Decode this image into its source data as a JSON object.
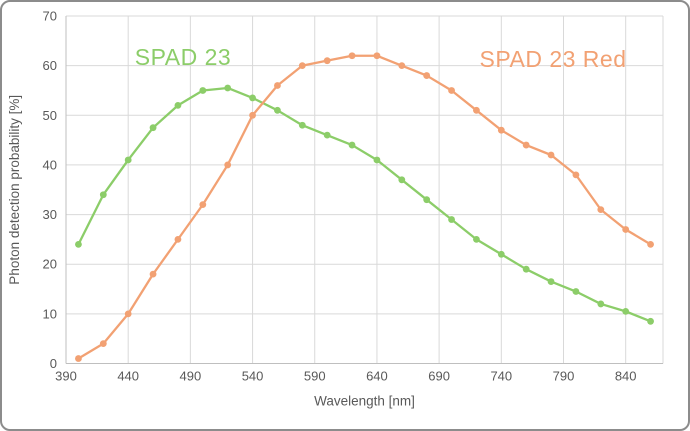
{
  "chart_data": {
    "type": "line",
    "title": "",
    "xlabel": "Wavelength [nm]",
    "ylabel": "Photon detection probability [%]",
    "xlim": [
      390,
      870
    ],
    "ylim": [
      0,
      70
    ],
    "x_ticks": [
      390,
      440,
      490,
      540,
      590,
      640,
      690,
      740,
      790,
      840
    ],
    "y_ticks": [
      0,
      10,
      20,
      30,
      40,
      50,
      60,
      70
    ],
    "grid": true,
    "legend": "inline-labels",
    "x": [
      400,
      420,
      440,
      460,
      480,
      500,
      520,
      540,
      560,
      580,
      600,
      620,
      640,
      660,
      680,
      700,
      720,
      740,
      760,
      780,
      800,
      820,
      840,
      860
    ],
    "series": [
      {
        "name": "SPAD 23",
        "color": "#8ccd69",
        "label_anchor": {
          "x": 181,
          "y": 63
        },
        "values": [
          24,
          34,
          41,
          47.5,
          52,
          55,
          55.5,
          53.5,
          51,
          48,
          46,
          44,
          41,
          37,
          33,
          29,
          25,
          22,
          19,
          16.5,
          14.5,
          12,
          10.5,
          8.5
        ]
      },
      {
        "name": "SPAD 23 Red",
        "color": "#f2a173",
        "label_anchor": {
          "x": 551,
          "y": 65
        },
        "values": [
          1,
          4,
          10,
          18,
          25,
          32,
          40,
          50,
          56,
          60,
          61,
          62,
          62,
          60,
          58,
          55,
          51,
          47,
          44,
          42,
          38,
          31,
          27,
          24
        ]
      }
    ],
    "colors": {
      "gridline": "#d9d9d9",
      "axis_line": "#bfbfbf",
      "tick_text": "#595959",
      "axis_title_text": "#595959",
      "plot_background": "#ffffff",
      "frame_border": "#8c8c8c"
    }
  }
}
